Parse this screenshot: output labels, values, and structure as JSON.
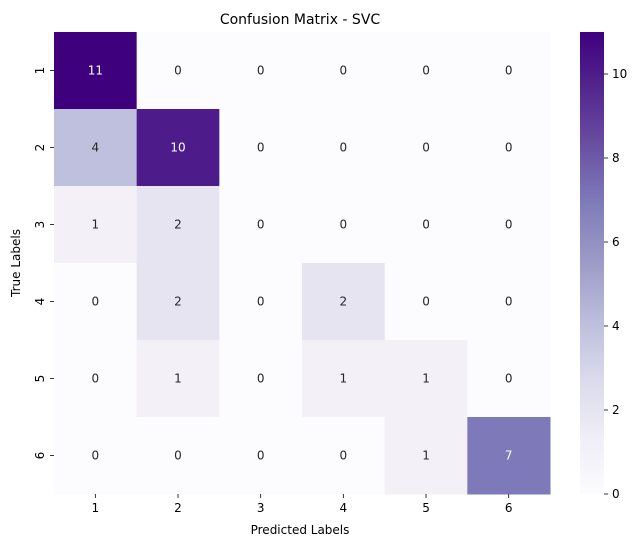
{
  "chart_data": {
    "type": "heatmap",
    "title": "Confusion Matrix - SVC",
    "xlabel": "Predicted Labels",
    "ylabel": "True Labels",
    "x_categories": [
      "1",
      "2",
      "3",
      "4",
      "5",
      "6"
    ],
    "y_categories": [
      "1",
      "2",
      "3",
      "4",
      "5",
      "6"
    ],
    "values": [
      [
        11,
        0,
        0,
        0,
        0,
        0
      ],
      [
        4,
        10,
        0,
        0,
        0,
        0
      ],
      [
        1,
        2,
        0,
        0,
        0,
        0
      ],
      [
        0,
        2,
        0,
        2,
        0,
        0
      ],
      [
        0,
        1,
        0,
        1,
        1,
        0
      ],
      [
        0,
        0,
        0,
        0,
        1,
        7
      ]
    ],
    "color_range": [
      0,
      11
    ],
    "colormap": "Purples",
    "colorbar_ticks": [
      "0",
      "2",
      "4",
      "6",
      "8",
      "10"
    ],
    "grid": false,
    "annotated": true
  }
}
